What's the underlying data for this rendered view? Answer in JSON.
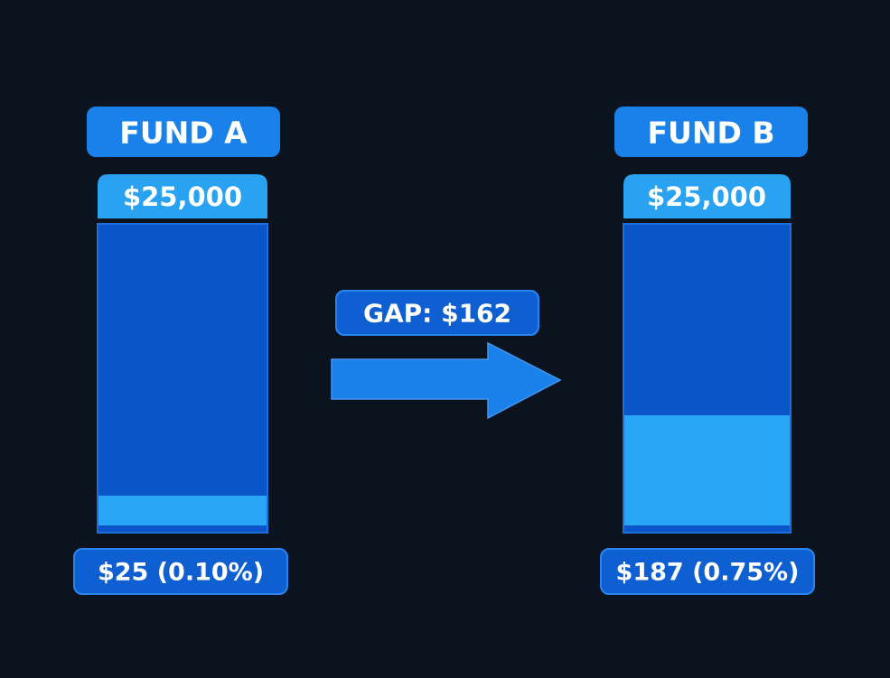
{
  "funds": [
    {
      "name": "FUND A",
      "amount": "$25,000",
      "fee": "$25 (0.10%)"
    },
    {
      "name": "FUND B",
      "amount": "$25,000",
      "fee": "$187 (0.75%)"
    }
  ],
  "gap": "GAP: $162"
}
